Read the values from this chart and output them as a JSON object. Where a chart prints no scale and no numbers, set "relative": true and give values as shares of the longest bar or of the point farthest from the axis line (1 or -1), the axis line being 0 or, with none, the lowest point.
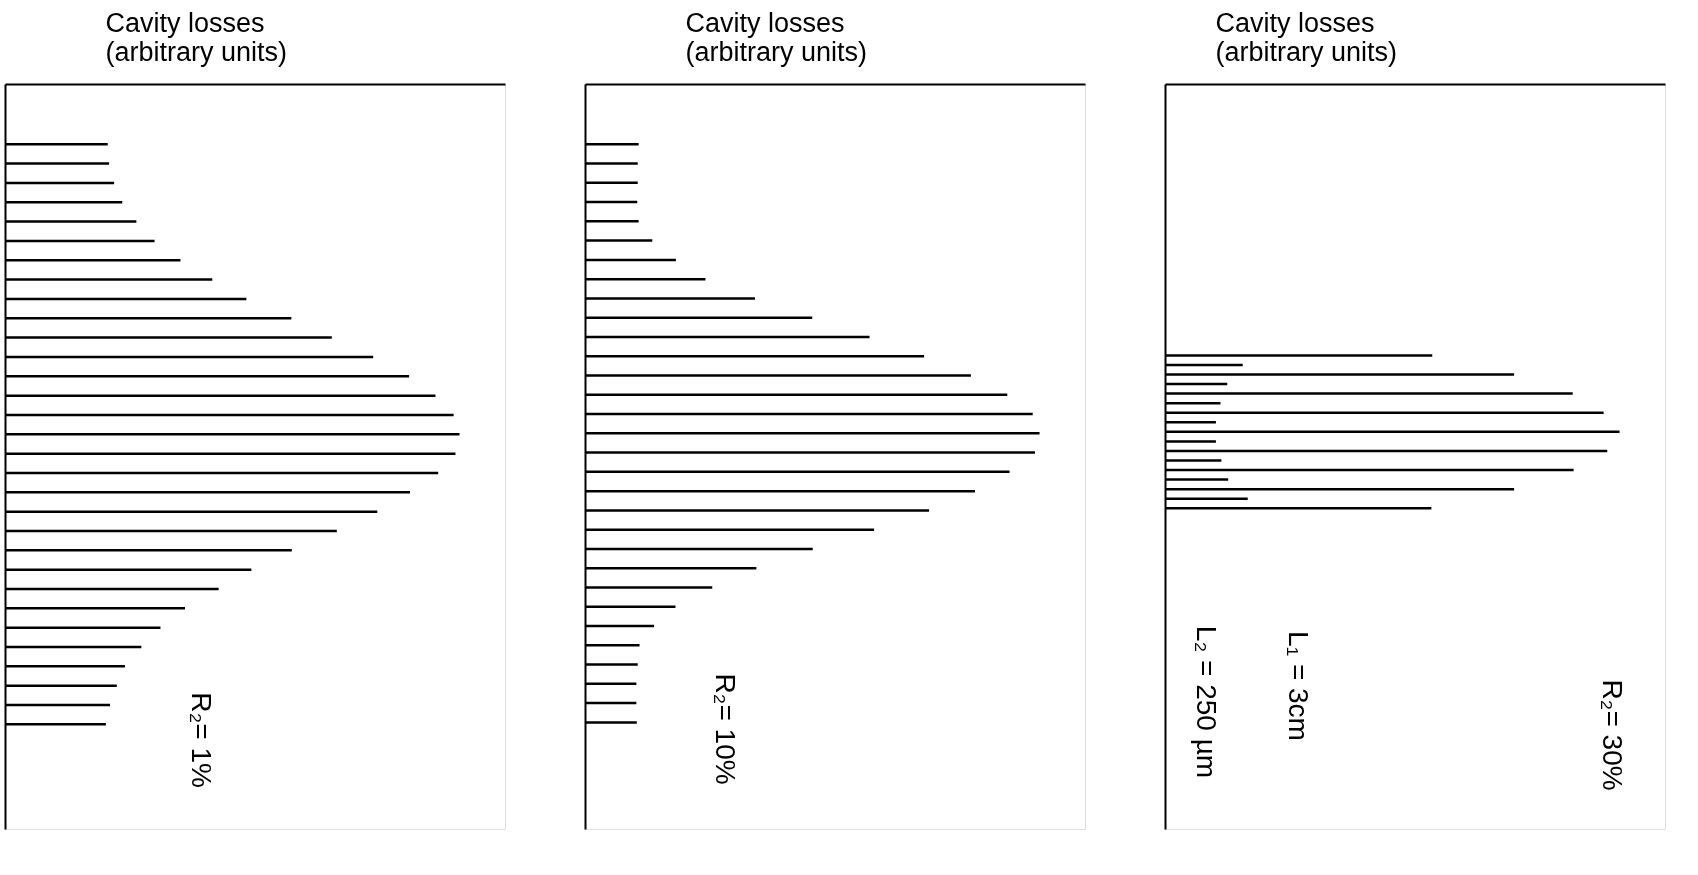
{
  "chart_data": [
    {
      "type": "bar",
      "orientation": "horizontal",
      "relative": true,
      "xlabel": "Cavity losses\n(arbitrary units)",
      "color": "#000000",
      "categories": [
        null,
        null,
        null,
        null,
        null,
        null,
        null,
        null,
        null,
        null,
        null,
        null,
        null,
        null,
        null,
        null,
        null,
        null,
        null,
        null,
        null,
        null,
        null,
        null,
        null,
        null,
        null,
        null,
        null,
        null,
        null
      ],
      "values": [
        0.226,
        0.229,
        0.24,
        0.258,
        0.289,
        0.329,
        0.386,
        0.456,
        0.531,
        0.63,
        0.719,
        0.81,
        0.889,
        0.947,
        0.987,
        1,
        0.991,
        0.953,
        0.891,
        0.819,
        0.73,
        0.631,
        0.542,
        0.47,
        0.396,
        0.342,
        0.3,
        0.264,
        0.246,
        0.231,
        0.222
      ],
      "annotations": [
        "R₂= 1%"
      ]
    },
    {
      "type": "bar",
      "orientation": "horizontal",
      "relative": true,
      "xlabel": "Cavity losses\n(arbitrary units)",
      "color": "#000000",
      "categories": [
        null,
        null,
        null,
        null,
        null,
        null,
        null,
        null,
        null,
        null,
        null,
        null,
        null,
        null,
        null,
        null,
        null,
        null,
        null,
        null,
        null,
        null,
        null,
        null,
        null,
        null,
        null,
        null,
        null,
        null,
        null
      ],
      "values": [
        0.118,
        0.116,
        0.116,
        0.115,
        0.118,
        0.148,
        0.2,
        0.265,
        0.374,
        0.5,
        0.626,
        0.746,
        0.849,
        0.929,
        0.985,
        1,
        0.99,
        0.934,
        0.858,
        0.757,
        0.636,
        0.501,
        0.377,
        0.28,
        0.199,
        0.152,
        0.12,
        0.116,
        0.113,
        0.113,
        0.114
      ],
      "annotations": [
        "R₂= 10%"
      ]
    },
    {
      "type": "bar",
      "orientation": "horizontal",
      "relative": true,
      "xlabel": "Cavity losses\n(arbitrary units)",
      "color": "#000000",
      "categories": [
        null,
        null,
        null,
        null,
        null,
        null,
        null,
        null,
        null,
        null,
        null,
        null,
        null,
        null,
        null,
        null,
        null
      ],
      "values": [
        0.588,
        0.171,
        0.768,
        0.137,
        0.897,
        0.122,
        0.965,
        0.112,
        1,
        0.112,
        0.973,
        0.124,
        0.899,
        0.139,
        0.768,
        0.182,
        0.586
      ],
      "annotations": [
        "L₂ = 250 µm",
        "L₁ = 3cm",
        "R₂= 30%"
      ]
    }
  ]
}
